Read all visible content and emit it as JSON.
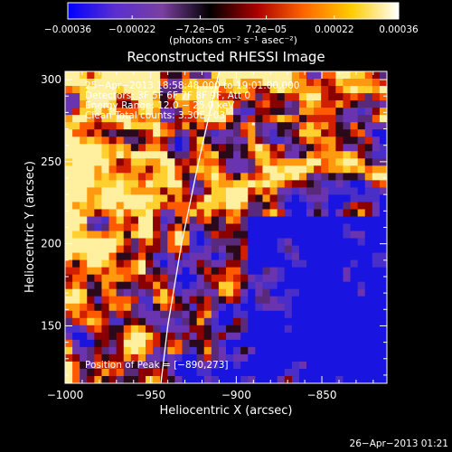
{
  "chart_data": {
    "type": "heatmap",
    "title": "Reconstructed RHESSI Image",
    "xlabel": "Heliocentric X (arcsec)",
    "ylabel": "Heliocentric Y (arcsec)",
    "xlim": [
      -1000,
      -812
    ],
    "ylim": [
      115,
      305
    ],
    "x_ticks": [
      -1000,
      -950,
      -900,
      -850
    ],
    "x_tick_labels": [
      "−1000",
      "−950",
      "−900",
      "−850"
    ],
    "y_ticks": [
      150,
      200,
      250,
      300
    ],
    "y_tick_labels": [
      "150",
      "200",
      "250",
      "300"
    ],
    "colorbar": {
      "range": [
        -0.00036,
        0.00036
      ],
      "ticks": [
        -0.00036,
        -0.00022,
        -7.2e-05,
        7.2e-05,
        0.00022,
        0.00036
      ],
      "tick_labels": [
        "−0.00036",
        "−0.00022",
        "−7.2e−05",
        "7.2e−05",
        "0.00022",
        "0.00036"
      ],
      "unit_label": "(photons cm⁻² s⁻¹ asec⁻²)",
      "colormap": [
        "#0000ff",
        "#5a2fd0",
        "#7a3fa0",
        "#000000",
        "#aa0000",
        "#ff6600",
        "#ffcc00",
        "#ffffff"
      ]
    },
    "annotations": [
      "25−Apr−2013 18:58:48.000 to 19:01:00.000",
      "Detectors: 3F 5F 6F 7F 8F 9F, Att 0",
      "Energy Range: 12.0 − 25.0 keV",
      "Clean    Total counts: 3.30E+03"
    ],
    "peak_label": "Position of Peak = [−890,273]",
    "peak": [
      -890,
      273
    ],
    "limb": [
      [
        -944,
        115
      ],
      [
        -940,
        150
      ],
      [
        -932,
        200
      ],
      [
        -922,
        250
      ],
      [
        -910,
        305
      ]
    ],
    "timestamp": "26−Apr−2013 01:21",
    "grid": false
  }
}
